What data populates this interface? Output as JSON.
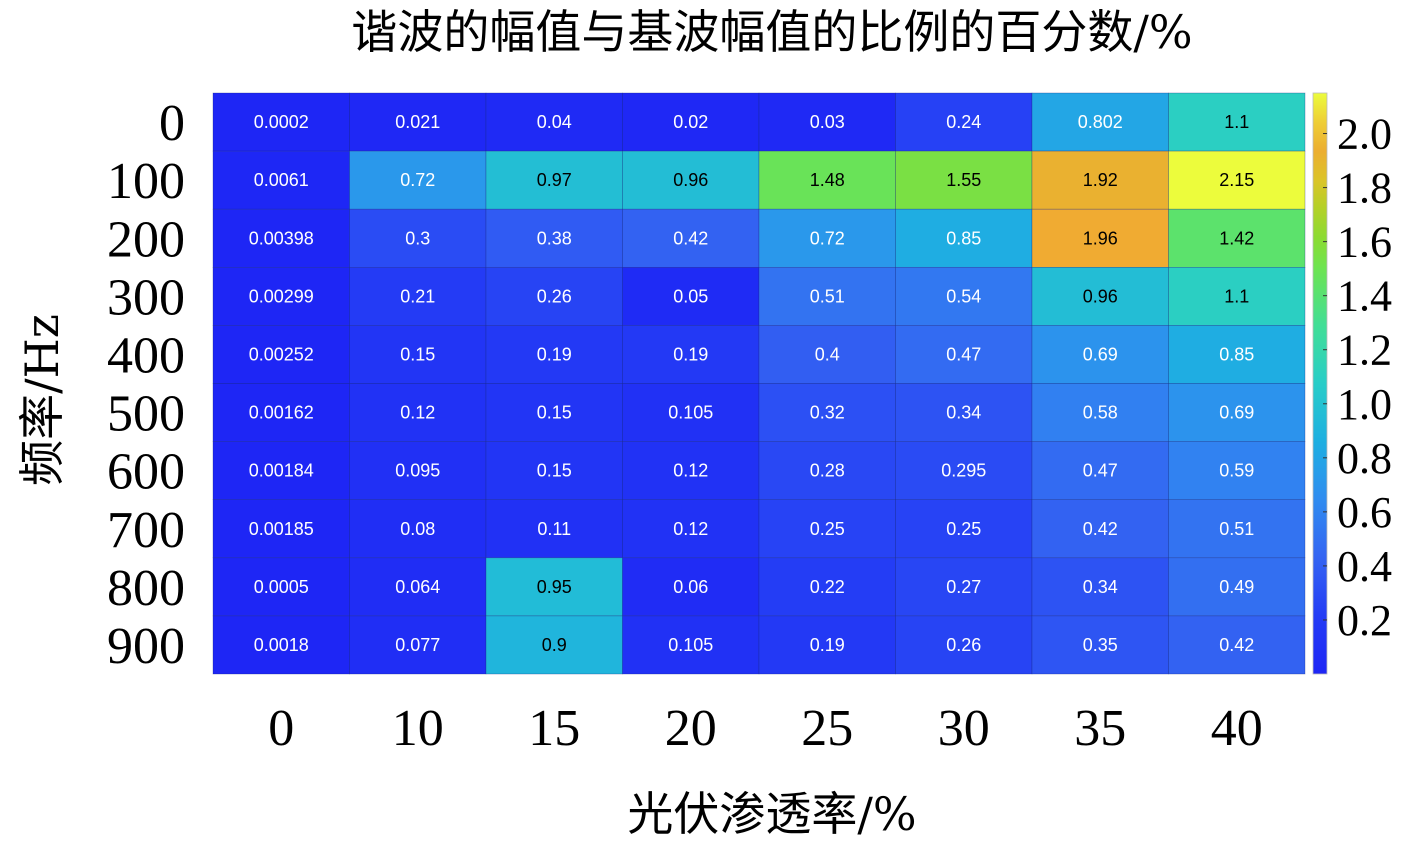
{
  "chart_data": {
    "type": "heatmap",
    "title": "谐波的幅值与基波幅值的比例的百分数/%",
    "xlabel": "光伏渗透率/%",
    "ylabel": "频率/Hz",
    "x_categories": [
      "0",
      "10",
      "15",
      "20",
      "25",
      "30",
      "35",
      "40"
    ],
    "y_categories": [
      "0",
      "100",
      "200",
      "300",
      "400",
      "500",
      "600",
      "700",
      "800",
      "900"
    ],
    "values": [
      [
        0.0002,
        0.021,
        0.04,
        0.02,
        0.03,
        0.24,
        0.802,
        1.1
      ],
      [
        0.0061,
        0.72,
        0.97,
        0.96,
        1.48,
        1.55,
        1.92,
        2.15
      ],
      [
        0.00398,
        0.3,
        0.38,
        0.42,
        0.72,
        0.85,
        1.96,
        1.42
      ],
      [
        0.00299,
        0.21,
        0.26,
        0.05,
        0.51,
        0.54,
        0.96,
        1.1
      ],
      [
        0.00252,
        0.15,
        0.19,
        0.19,
        0.4,
        0.47,
        0.69,
        0.85
      ],
      [
        0.00162,
        0.12,
        0.15,
        0.105,
        0.32,
        0.34,
        0.58,
        0.69
      ],
      [
        0.00184,
        0.095,
        0.15,
        0.12,
        0.28,
        0.295,
        0.47,
        0.59
      ],
      [
        0.00185,
        0.08,
        0.11,
        0.12,
        0.25,
        0.25,
        0.42,
        0.51
      ],
      [
        0.0005,
        0.064,
        0.95,
        0.06,
        0.22,
        0.27,
        0.34,
        0.49
      ],
      [
        0.0018,
        0.077,
        0.9,
        0.105,
        0.19,
        0.26,
        0.35,
        0.42
      ]
    ],
    "colorbar": {
      "range": [
        0,
        2.15
      ],
      "ticks": [
        0.2,
        0.4,
        0.6,
        0.8,
        1.0,
        1.2,
        1.4,
        1.6,
        1.8,
        2.0
      ],
      "tick_labels": [
        "0.2",
        "0.4",
        "0.6",
        "0.8",
        "1.0",
        "1.2",
        "1.4",
        "1.6",
        "1.8",
        "2.0"
      ],
      "colormap": "parula",
      "placement": "right"
    },
    "grid": false
  }
}
